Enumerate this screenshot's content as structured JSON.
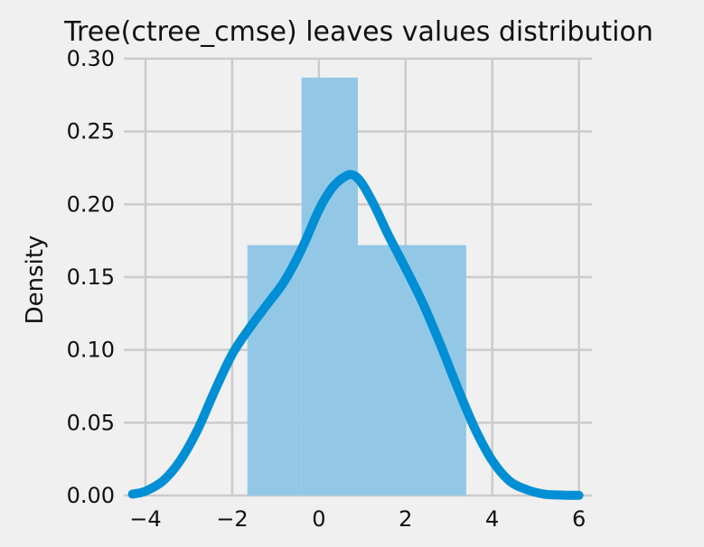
{
  "chart_data": {
    "type": "histogram",
    "title": "Tree(ctree_cmse) leaves values distribution",
    "xlabel": "",
    "ylabel": "Density",
    "xlim": [
      -4.5,
      6.3
    ],
    "ylim": [
      0,
      0.3
    ],
    "x_ticks": [
      -4,
      -2,
      0,
      2,
      4,
      6
    ],
    "x_tick_labels": [
      "−4",
      "−2",
      "0",
      "2",
      "4",
      "6"
    ],
    "y_ticks": [
      0.0,
      0.05,
      0.1,
      0.15,
      0.2,
      0.25,
      0.3
    ],
    "y_tick_labels": [
      "0.00",
      "0.05",
      "0.10",
      "0.15",
      "0.20",
      "0.25",
      "0.30"
    ],
    "grid": true,
    "bars": [
      {
        "x0": -1.65,
        "x1": -0.4,
        "density": 0.172
      },
      {
        "x0": -0.4,
        "x1": 0.9,
        "density": 0.287
      },
      {
        "x0": 0.9,
        "x1": 3.4,
        "density": 0.172
      }
    ],
    "kde": {
      "x": [
        -4.3,
        -4.0,
        -3.6,
        -3.2,
        -2.8,
        -2.4,
        -2.0,
        -1.6,
        -1.2,
        -0.8,
        -0.4,
        0.0,
        0.3,
        0.6,
        0.8,
        1.0,
        1.3,
        1.6,
        2.0,
        2.4,
        2.8,
        3.2,
        3.6,
        4.0,
        4.4,
        4.8,
        5.2,
        5.6,
        6.0
      ],
      "y": [
        0.001,
        0.003,
        0.01,
        0.024,
        0.045,
        0.072,
        0.097,
        0.115,
        0.131,
        0.147,
        0.169,
        0.196,
        0.211,
        0.219,
        0.22,
        0.214,
        0.198,
        0.179,
        0.156,
        0.132,
        0.104,
        0.074,
        0.046,
        0.024,
        0.01,
        0.004,
        0.001,
        0.0003,
        0.0001
      ]
    },
    "colors": {
      "bar_fill": "#92c8e6",
      "bar_edge": "#7eb6d8",
      "line": "#008fd5",
      "grid": "#cbcbcb",
      "background": "#f0f0f0"
    }
  }
}
